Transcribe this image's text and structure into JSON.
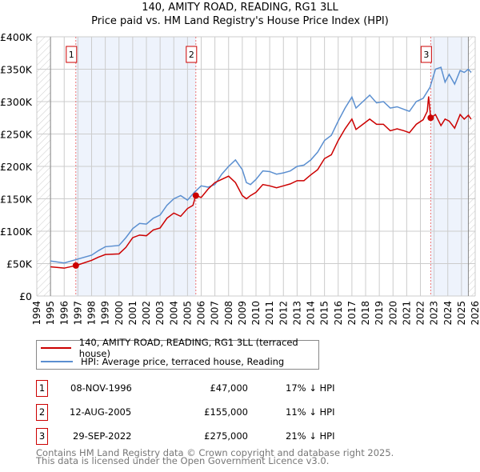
{
  "title": "140, AMITY ROAD, READING, RG1 3LL",
  "subtitle": "Price paid vs. HM Land Registry's House Price Index (HPI)",
  "chart_data": {
    "type": "line",
    "xlim": [
      1994,
      2026
    ],
    "ylim": [
      0,
      400000
    ],
    "yticks": [
      {
        "v": 0,
        "label": "£0"
      },
      {
        "v": 50000,
        "label": "£50K"
      },
      {
        "v": 100000,
        "label": "£100K"
      },
      {
        "v": 150000,
        "label": "£150K"
      },
      {
        "v": 200000,
        "label": "£200K"
      },
      {
        "v": 250000,
        "label": "£250K"
      },
      {
        "v": 300000,
        "label": "£300K"
      },
      {
        "v": 350000,
        "label": "£350K"
      },
      {
        "v": 400000,
        "label": "£400K"
      }
    ],
    "xticks": [
      1994,
      1995,
      1996,
      1997,
      1998,
      1999,
      2000,
      2001,
      2002,
      2003,
      2004,
      2005,
      2006,
      2007,
      2008,
      2009,
      2010,
      2011,
      2012,
      2013,
      2014,
      2015,
      2016,
      2017,
      2018,
      2019,
      2020,
      2021,
      2022,
      2023,
      2024,
      2025,
      2026
    ],
    "data_range": [
      1995,
      2025.5
    ],
    "colors": {
      "property": "#cc0000",
      "hpi": "#5b8fd0",
      "shade": "#eef3fc"
    },
    "series": [
      {
        "name": "140, AMITY ROAD, READING, RG1 3LL (terraced house)",
        "color": "#cc0000",
        "points": [
          [
            1995,
            45
          ],
          [
            1996,
            43
          ],
          [
            1996.85,
            47
          ],
          [
            1997,
            48
          ],
          [
            1998,
            55
          ],
          [
            1998.5,
            60
          ],
          [
            1999,
            64
          ],
          [
            2000,
            65
          ],
          [
            2000.5,
            75
          ],
          [
            2001,
            90
          ],
          [
            2001.5,
            94
          ],
          [
            2002,
            93
          ],
          [
            2002.5,
            102
          ],
          [
            2003,
            105
          ],
          [
            2003.5,
            120
          ],
          [
            2004,
            128
          ],
          [
            2004.5,
            123
          ],
          [
            2005,
            135
          ],
          [
            2005.4,
            140
          ],
          [
            2005.6,
            155
          ],
          [
            2006,
            152
          ],
          [
            2006.5,
            165
          ],
          [
            2007,
            175
          ],
          [
            2007.5,
            180
          ],
          [
            2008,
            185
          ],
          [
            2008.5,
            175
          ],
          [
            2009,
            155
          ],
          [
            2009.3,
            150
          ],
          [
            2009.6,
            155
          ],
          [
            2010,
            160
          ],
          [
            2010.5,
            172
          ],
          [
            2011,
            170
          ],
          [
            2011.5,
            167
          ],
          [
            2012,
            170
          ],
          [
            2012.5,
            173
          ],
          [
            2013,
            178
          ],
          [
            2013.5,
            178
          ],
          [
            2014,
            187
          ],
          [
            2014.5,
            195
          ],
          [
            2015,
            212
          ],
          [
            2015.5,
            218
          ],
          [
            2016,
            240
          ],
          [
            2016.5,
            258
          ],
          [
            2017,
            273
          ],
          [
            2017.3,
            257
          ],
          [
            2017.8,
            265
          ],
          [
            2018.3,
            273
          ],
          [
            2018.8,
            265
          ],
          [
            2019.3,
            265
          ],
          [
            2019.8,
            255
          ],
          [
            2020.3,
            258
          ],
          [
            2020.8,
            255
          ],
          [
            2021.2,
            252
          ],
          [
            2021.7,
            265
          ],
          [
            2022.2,
            272
          ],
          [
            2022.5,
            285
          ],
          [
            2022.6,
            308
          ],
          [
            2022.75,
            275
          ],
          [
            2023.1,
            280
          ],
          [
            2023.5,
            263
          ],
          [
            2023.8,
            273
          ],
          [
            2024.1,
            270
          ],
          [
            2024.5,
            259
          ],
          [
            2024.9,
            280
          ],
          [
            2025.2,
            273
          ],
          [
            2025.5,
            279
          ],
          [
            2025.7,
            273
          ]
        ]
      },
      {
        "name": "HPI: Average price, terraced house, Reading",
        "color": "#5b8fd0",
        "points": [
          [
            1995,
            54
          ],
          [
            1996,
            51
          ],
          [
            1997,
            57
          ],
          [
            1998,
            63
          ],
          [
            1998.5,
            70
          ],
          [
            1999,
            76
          ],
          [
            2000,
            78
          ],
          [
            2000.5,
            90
          ],
          [
            2001,
            104
          ],
          [
            2001.5,
            112
          ],
          [
            2002,
            111
          ],
          [
            2002.5,
            120
          ],
          [
            2003,
            125
          ],
          [
            2003.5,
            140
          ],
          [
            2004,
            150
          ],
          [
            2004.5,
            155
          ],
          [
            2005,
            148
          ],
          [
            2005.5,
            160
          ],
          [
            2006,
            170
          ],
          [
            2006.5,
            168
          ],
          [
            2007,
            172
          ],
          [
            2007.5,
            188
          ],
          [
            2008,
            200
          ],
          [
            2008.5,
            210
          ],
          [
            2009,
            195
          ],
          [
            2009.3,
            175
          ],
          [
            2009.6,
            172
          ],
          [
            2010,
            180
          ],
          [
            2010.5,
            193
          ],
          [
            2011,
            192
          ],
          [
            2011.5,
            188
          ],
          [
            2012,
            190
          ],
          [
            2012.5,
            193
          ],
          [
            2013,
            200
          ],
          [
            2013.5,
            202
          ],
          [
            2014,
            210
          ],
          [
            2014.5,
            222
          ],
          [
            2015,
            240
          ],
          [
            2015.5,
            248
          ],
          [
            2016,
            270
          ],
          [
            2016.5,
            290
          ],
          [
            2017,
            307
          ],
          [
            2017.3,
            290
          ],
          [
            2017.8,
            300
          ],
          [
            2018.3,
            310
          ],
          [
            2018.8,
            298
          ],
          [
            2019.3,
            300
          ],
          [
            2019.8,
            290
          ],
          [
            2020.3,
            292
          ],
          [
            2020.8,
            288
          ],
          [
            2021.2,
            285
          ],
          [
            2021.7,
            300
          ],
          [
            2022.2,
            305
          ],
          [
            2022.7,
            322
          ],
          [
            2023.1,
            350
          ],
          [
            2023.5,
            353
          ],
          [
            2023.8,
            330
          ],
          [
            2024.1,
            342
          ],
          [
            2024.5,
            327
          ],
          [
            2024.9,
            348
          ],
          [
            2025.2,
            345
          ],
          [
            2025.5,
            350
          ],
          [
            2025.7,
            345
          ]
        ]
      }
    ],
    "sales": [
      {
        "label": "1",
        "x": 1996.85,
        "y": 47
      },
      {
        "label": "2",
        "x": 2005.61,
        "y": 155
      },
      {
        "label": "3",
        "x": 2022.75,
        "y": 275
      }
    ],
    "value_unit": "thousand GBP"
  },
  "legend": {
    "property": "140, AMITY ROAD, READING, RG1 3LL (terraced house)",
    "hpi": "HPI: Average price, terraced house, Reading"
  },
  "table": [
    {
      "num": "1",
      "date": "08-NOV-1996",
      "price": "£47,000",
      "hpi": "17% ↓ HPI"
    },
    {
      "num": "2",
      "date": "12-AUG-2005",
      "price": "£155,000",
      "hpi": "11% ↓ HPI"
    },
    {
      "num": "3",
      "date": "29-SEP-2022",
      "price": "£275,000",
      "hpi": "21% ↓ HPI"
    }
  ],
  "footer": {
    "line1": "Contains HM Land Registry data © Crown copyright and database right 2025.",
    "line2": "This data is licensed under the Open Government Licence v3.0."
  }
}
